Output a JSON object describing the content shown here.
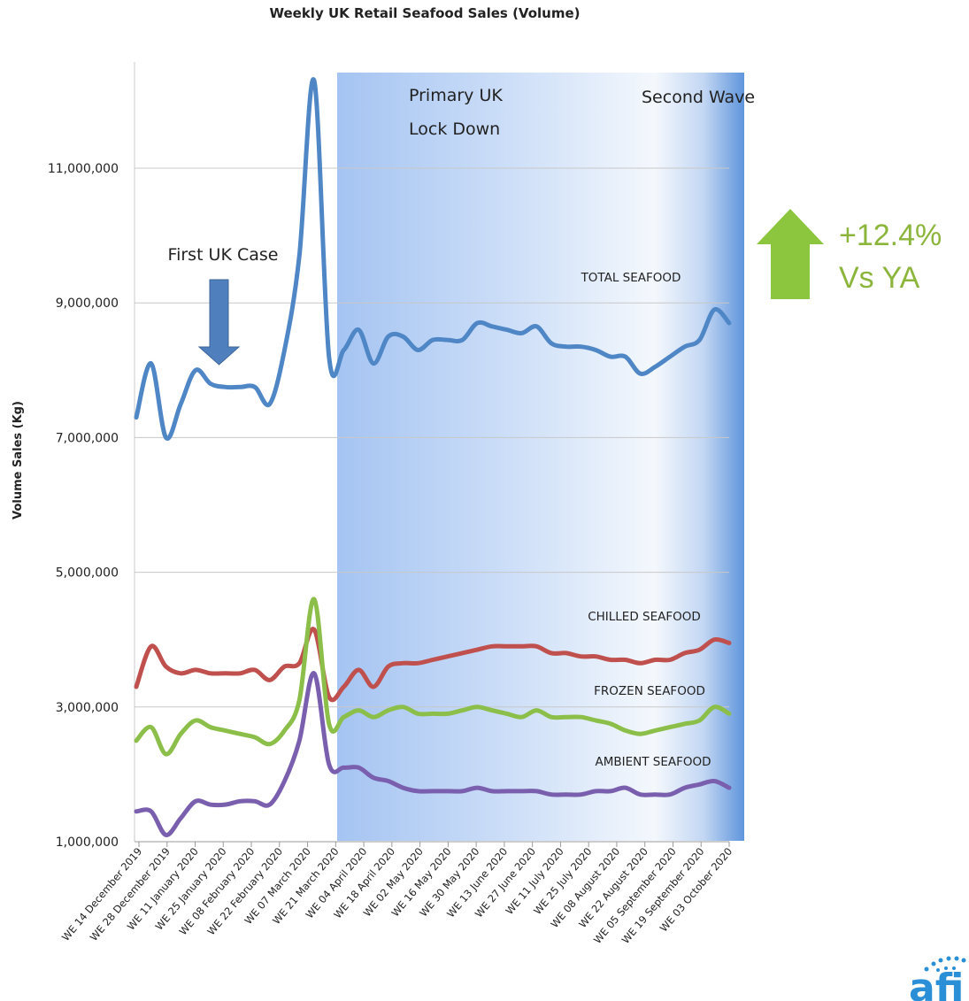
{
  "chart_data": {
    "type": "line",
    "title": "Weekly UK Retail Seafood Sales (Volume)",
    "xlabel": "",
    "ylabel": "Volume Sales (Kg)",
    "ylim": [
      1000000,
      12500000
    ],
    "y_ticks": [
      1000000,
      3000000,
      5000000,
      7000000,
      9000000,
      11000000
    ],
    "y_tick_labels": [
      "1,000,000",
      "3,000,000",
      "5,000,000",
      "7,000,000",
      "9,000,000",
      "11,000,000"
    ],
    "grid": true,
    "x_tick_labels": [
      "WE 14 December 2019",
      "WE 28 December 2019",
      "WE 11 January 2020",
      "WE 25 January 2020",
      "WE 08 February 2020",
      "WE 22 February 2020",
      "WE 07 March 2020",
      "WE 21 March 2020",
      "WE 04 April 2020",
      "WE 18 April 2020",
      "WE 02 May 2020",
      "WE 16 May 2020",
      "WE 30 May 2020",
      "WE 13 June 2020",
      "WE 27 June 2020",
      "WE 11 July 2020",
      "WE 25 July 2020",
      "WE 08 August 2020",
      "WE 22 August 2020",
      "WE 05 September 2020",
      "WE 19 September 2020",
      "WE 03 October 2020"
    ],
    "series": [
      {
        "name": "TOTAL SEAFOOD",
        "color": "#4f86c6",
        "values": [
          7300000,
          8100000,
          7000000,
          7500000,
          8000000,
          7800000,
          7750000,
          7750000,
          7750000,
          7500000,
          8300000,
          9700000,
          12300000,
          8200000,
          8300000,
          8600000,
          8100000,
          8500000,
          8500000,
          8300000,
          8450000,
          8450000,
          8450000,
          8700000,
          8650000,
          8600000,
          8550000,
          8650000,
          8400000,
          8350000,
          8350000,
          8300000,
          8200000,
          8200000,
          7950000,
          8050000,
          8200000,
          8350000,
          8450000,
          8900000,
          8700000
        ]
      },
      {
        "name": "CHILLED SEAFOOD",
        "color": "#c0504d",
        "values": [
          3300000,
          3900000,
          3600000,
          3500000,
          3550000,
          3500000,
          3500000,
          3500000,
          3550000,
          3400000,
          3600000,
          3650000,
          4150000,
          3150000,
          3300000,
          3550000,
          3300000,
          3600000,
          3650000,
          3650000,
          3700000,
          3750000,
          3800000,
          3850000,
          3900000,
          3900000,
          3900000,
          3900000,
          3800000,
          3800000,
          3750000,
          3750000,
          3700000,
          3700000,
          3650000,
          3700000,
          3700000,
          3800000,
          3850000,
          4000000,
          3950000
        ]
      },
      {
        "name": "FROZEN SEAFOOD",
        "color": "#8cbf4a",
        "values": [
          2500000,
          2700000,
          2300000,
          2600000,
          2800000,
          2700000,
          2650000,
          2600000,
          2550000,
          2450000,
          2650000,
          3100000,
          4600000,
          2750000,
          2850000,
          2950000,
          2850000,
          2950000,
          3000000,
          2900000,
          2900000,
          2900000,
          2950000,
          3000000,
          2950000,
          2900000,
          2850000,
          2950000,
          2850000,
          2850000,
          2850000,
          2800000,
          2750000,
          2650000,
          2600000,
          2650000,
          2700000,
          2750000,
          2800000,
          3000000,
          2900000
        ]
      },
      {
        "name": "AMBIENT SEAFOOD",
        "color": "#7a5fae",
        "values": [
          1450000,
          1450000,
          1100000,
          1350000,
          1600000,
          1550000,
          1550000,
          1600000,
          1600000,
          1550000,
          1900000,
          2500000,
          3500000,
          2150000,
          2100000,
          2100000,
          1950000,
          1900000,
          1800000,
          1750000,
          1750000,
          1750000,
          1750000,
          1800000,
          1750000,
          1750000,
          1750000,
          1750000,
          1700000,
          1700000,
          1700000,
          1750000,
          1750000,
          1800000,
          1700000,
          1700000,
          1700000,
          1800000,
          1850000,
          1900000,
          1800000
        ]
      }
    ],
    "annotations": {
      "first_case": "First UK Case",
      "lockdown_line1": "Primary UK",
      "lockdown_line2": "Lock Down",
      "second_wave": "Second Wave",
      "growth_line1": "+12.4%",
      "growth_line2": "Vs YA"
    },
    "colors": {
      "lockdown_shade": "#a9c7f1",
      "arrow_down": "#4f7fbd",
      "arrow_up": "#8cc63f",
      "growth_text": "#8cb53c",
      "logo": "#2a8fd6"
    }
  },
  "logo": {
    "text": "afi",
    "icon": "seafish-logo-icon"
  }
}
